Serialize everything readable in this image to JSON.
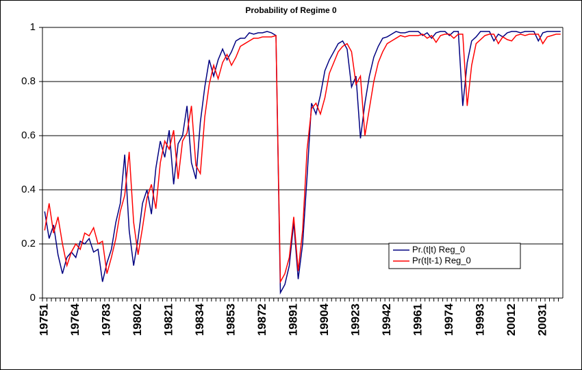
{
  "chart_data": {
    "type": "line",
    "title": "Probability of Regime 0",
    "categories": [
      "19751",
      null,
      null,
      null,
      null,
      null,
      null,
      "19764",
      null,
      null,
      null,
      null,
      null,
      null,
      "19783",
      null,
      null,
      null,
      null,
      null,
      null,
      "19802",
      null,
      null,
      null,
      null,
      null,
      null,
      "19821",
      null,
      null,
      null,
      null,
      null,
      null,
      "19834",
      null,
      null,
      null,
      null,
      null,
      null,
      "19853",
      null,
      null,
      null,
      null,
      null,
      null,
      "19872",
      null,
      null,
      null,
      null,
      null,
      null,
      "19891",
      null,
      null,
      null,
      null,
      null,
      null,
      "19904",
      null,
      null,
      null,
      null,
      null,
      null,
      "19923",
      null,
      null,
      null,
      null,
      null,
      null,
      "19942",
      null,
      null,
      null,
      null,
      null,
      null,
      "19961",
      null,
      null,
      null,
      null,
      null,
      null,
      "19974",
      null,
      null,
      null,
      null,
      null,
      null,
      "19993",
      null,
      null,
      null,
      null,
      null,
      null,
      "20012",
      null,
      null,
      null,
      null,
      null,
      null,
      "20031",
      null,
      null,
      null,
      null
    ],
    "series": [
      {
        "name": "Pr.(t|t) Reg_0",
        "color": "#000080",
        "values": [
          0.32,
          0.22,
          0.27,
          0.16,
          0.09,
          0.15,
          0.17,
          0.15,
          0.21,
          0.2,
          0.22,
          0.17,
          0.18,
          0.06,
          0.13,
          0.18,
          0.28,
          0.35,
          0.53,
          0.25,
          0.12,
          0.22,
          0.35,
          0.4,
          0.31,
          0.48,
          0.58,
          0.52,
          0.62,
          0.42,
          0.57,
          0.6,
          0.71,
          0.5,
          0.44,
          0.65,
          0.78,
          0.88,
          0.82,
          0.88,
          0.92,
          0.88,
          0.91,
          0.95,
          0.96,
          0.96,
          0.98,
          0.975,
          0.98,
          0.98,
          0.985,
          0.98,
          0.97,
          0.02,
          0.05,
          0.12,
          0.28,
          0.07,
          0.2,
          0.45,
          0.72,
          0.68,
          0.75,
          0.84,
          0.88,
          0.91,
          0.94,
          0.95,
          0.92,
          0.78,
          0.82,
          0.59,
          0.72,
          0.82,
          0.89,
          0.93,
          0.96,
          0.965,
          0.975,
          0.985,
          0.98,
          0.98,
          0.985,
          0.985,
          0.985,
          0.97,
          0.98,
          0.96,
          0.98,
          0.985,
          0.985,
          0.97,
          0.985,
          0.985,
          0.71,
          0.87,
          0.95,
          0.965,
          0.985,
          0.985,
          0.985,
          0.95,
          0.975,
          0.965,
          0.98,
          0.985,
          0.985,
          0.98,
          0.985,
          0.985,
          0.985,
          0.95,
          0.98,
          0.985,
          0.985,
          0.985,
          0.985
        ]
      },
      {
        "name": "Pr(t|t-1) Reg_0",
        "color": "#ff0000",
        "values": [
          0.25,
          0.35,
          0.24,
          0.3,
          0.2,
          0.12,
          0.17,
          0.2,
          0.18,
          0.24,
          0.23,
          0.26,
          0.2,
          0.21,
          0.09,
          0.15,
          0.22,
          0.32,
          0.38,
          0.54,
          0.28,
          0.16,
          0.26,
          0.37,
          0.42,
          0.33,
          0.5,
          0.58,
          0.55,
          0.62,
          0.44,
          0.58,
          0.61,
          0.71,
          0.49,
          0.46,
          0.67,
          0.79,
          0.86,
          0.81,
          0.87,
          0.9,
          0.86,
          0.89,
          0.93,
          0.94,
          0.95,
          0.96,
          0.96,
          0.965,
          0.965,
          0.965,
          0.97,
          0.06,
          0.09,
          0.15,
          0.3,
          0.1,
          0.25,
          0.55,
          0.7,
          0.72,
          0.68,
          0.74,
          0.83,
          0.87,
          0.91,
          0.93,
          0.94,
          0.91,
          0.79,
          0.82,
          0.6,
          0.7,
          0.8,
          0.87,
          0.91,
          0.94,
          0.95,
          0.96,
          0.97,
          0.965,
          0.97,
          0.97,
          0.97,
          0.975,
          0.96,
          0.97,
          0.945,
          0.97,
          0.975,
          0.975,
          0.96,
          0.975,
          0.975,
          0.71,
          0.86,
          0.94,
          0.955,
          0.97,
          0.975,
          0.975,
          0.94,
          0.965,
          0.955,
          0.95,
          0.97,
          0.975,
          0.97,
          0.975,
          0.975,
          0.975,
          0.94,
          0.965,
          0.97,
          0.975,
          0.975
        ]
      }
    ],
    "ylim": [
      0,
      1
    ],
    "yticks": [
      0,
      0.2,
      0.4,
      0.6,
      0.8,
      1
    ],
    "grid": true
  }
}
